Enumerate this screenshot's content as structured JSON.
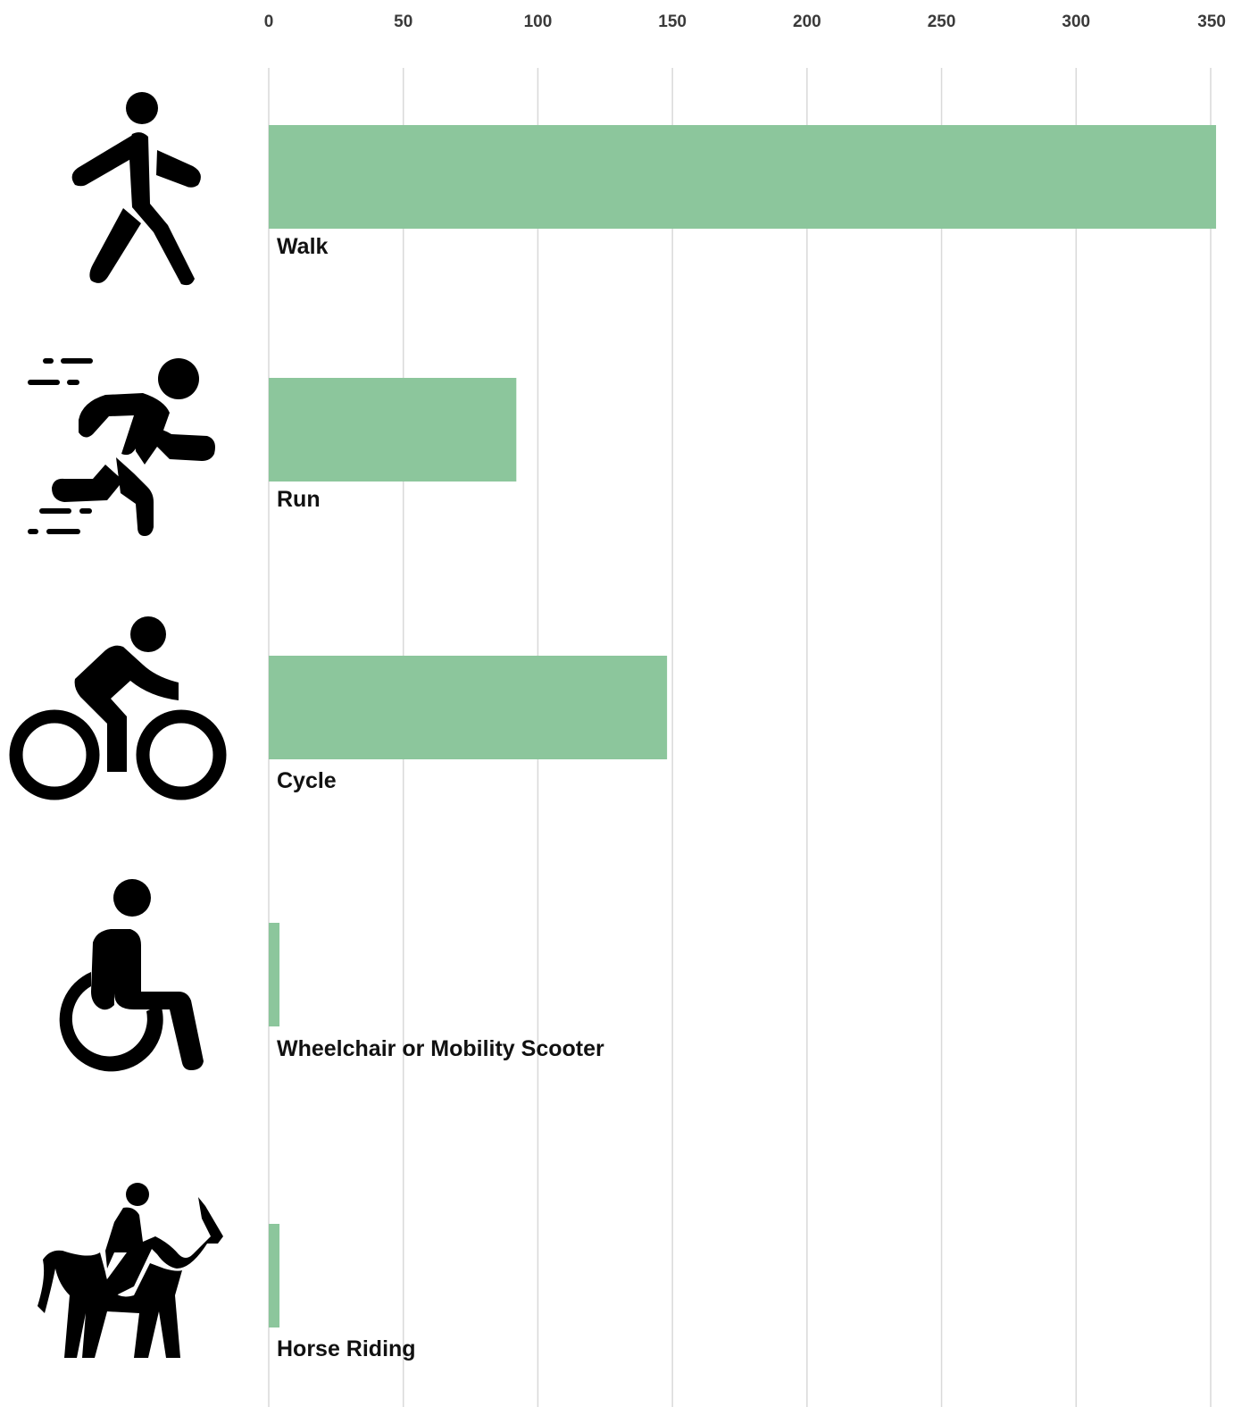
{
  "chart_data": {
    "type": "bar",
    "orientation": "horizontal",
    "title": "",
    "xlabel": "",
    "ylabel": "",
    "xlim": [
      0,
      350
    ],
    "x_ticks": [
      0,
      50,
      100,
      150,
      200,
      250,
      300,
      350
    ],
    "x_axis_position": "top",
    "grid": true,
    "legend": "none",
    "bar_color": "#8cc69c",
    "categories": [
      "Walk",
      "Run",
      "Cycle",
      "Wheelchair or Mobility Scooter",
      "Horse Riding"
    ],
    "values": [
      352,
      92,
      148,
      4,
      4
    ],
    "icons": [
      "walking-person-icon",
      "running-person-icon",
      "cyclist-icon",
      "wheelchair-user-icon",
      "horse-rider-icon"
    ]
  }
}
